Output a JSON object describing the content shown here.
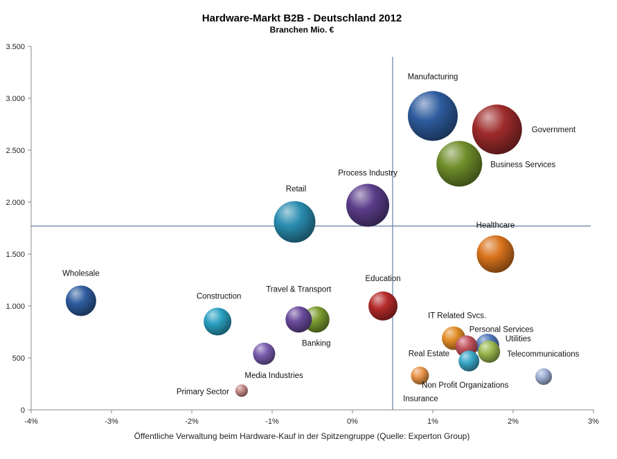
{
  "chart_data": {
    "type": "bubble",
    "title": "Hardware-Markt  B2B - Deutschland  2012",
    "subtitle": "Branchen Mio. €",
    "xlabel": "Öffentliche Verwaltung beim Hardware-Kauf in der Spitzengruppe (Quelle: Experton Group)",
    "ylabel": "",
    "xlim": [
      -4,
      3
    ],
    "ylim": [
      0,
      3500
    ],
    "x_ticks": [
      -4,
      -3,
      -2,
      -1,
      0,
      1,
      2,
      3
    ],
    "x_tick_labels": [
      "-4%",
      "-3%",
      "-2%",
      "-1%",
      "0%",
      "1%",
      "2%",
      "3%"
    ],
    "y_ticks": [
      0,
      500,
      1000,
      1500,
      2000,
      2500,
      3000,
      3500
    ],
    "y_tick_labels": [
      "0",
      "500",
      "1.000",
      "1.500",
      "2.000",
      "2.500",
      "3.000",
      "3.500"
    ],
    "grid": false,
    "reference_lines": {
      "x": 0.5,
      "y": 1770
    },
    "points": [
      {
        "label": "Manufacturing",
        "x": 1.0,
        "y": 2830,
        "size": 36,
        "color": "#2e5c9e"
      },
      {
        "label": "Government",
        "x": 1.8,
        "y": 2700,
        "size": 36,
        "color": "#9e2b2b"
      },
      {
        "label": "Business Services",
        "x": 1.33,
        "y": 2370,
        "size": 33,
        "color": "#6f8d2a"
      },
      {
        "label": "Process Industry",
        "x": 0.19,
        "y": 1970,
        "size": 31,
        "color": "#5b3d8a"
      },
      {
        "label": "Retail",
        "x": -0.72,
        "y": 1810,
        "size": 30,
        "color": "#2a8db0"
      },
      {
        "label": "Healthcare",
        "x": 1.78,
        "y": 1500,
        "size": 27,
        "color": "#d9731c"
      },
      {
        "label": "Wholesale",
        "x": -3.38,
        "y": 1050,
        "size": 22,
        "color": "#2e5c9e"
      },
      {
        "label": "Education",
        "x": 0.38,
        "y": 1000,
        "size": 21,
        "color": "#b52a2a"
      },
      {
        "label": "Construction",
        "x": -1.68,
        "y": 850,
        "size": 20,
        "color": "#2aa0c0"
      },
      {
        "label": "Banking",
        "x": -0.45,
        "y": 870,
        "size": 19,
        "color": "#7a9a2e"
      },
      {
        "label": "Travel & Transport",
        "x": -0.67,
        "y": 870,
        "size": 19,
        "color": "#6a4a9c"
      },
      {
        "label": "IT Related Svcs.",
        "x": 1.26,
        "y": 690,
        "size": 17,
        "color": "#e38d28"
      },
      {
        "label": "Personal Services",
        "x": 1.42,
        "y": 610,
        "size": 16,
        "color": "#c2545e"
      },
      {
        "label": "Utilities",
        "x": 1.68,
        "y": 620,
        "size": 17,
        "color": "#4f78b8"
      },
      {
        "label": "Telecommunications",
        "x": 1.7,
        "y": 560,
        "size": 16,
        "color": "#9ab84f"
      },
      {
        "label": "Real Estate",
        "x": 1.45,
        "y": 470,
        "size": 15,
        "color": "#3aa8c8"
      },
      {
        "label": "Media Industries",
        "x": -1.1,
        "y": 540,
        "size": 16,
        "color": "#7a5cae"
      },
      {
        "label": "Non Profit Organizations",
        "x": 2.38,
        "y": 320,
        "size": 12,
        "color": "#9fb0d4"
      },
      {
        "label": "Insurance",
        "x": 0.84,
        "y": 330,
        "size": 13,
        "color": "#e8954a"
      },
      {
        "label": "Primary Sector",
        "x": -1.38,
        "y": 185,
        "size": 9,
        "color": "#c48a86"
      }
    ]
  }
}
